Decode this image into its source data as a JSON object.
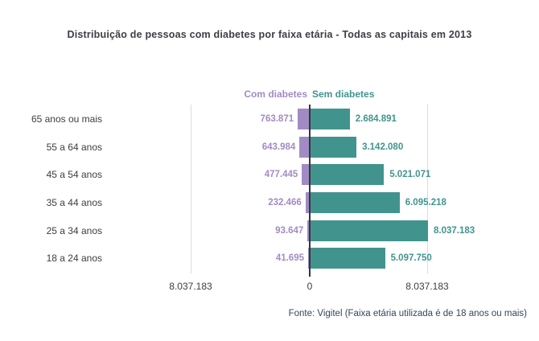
{
  "title": "Distribuição de pessoas com diabetes por faixa etária - Todas as capitais em 2013",
  "legend": {
    "com_diabetes": "Com diabetes",
    "sem_diabetes": "Sem diabetes"
  },
  "axis": {
    "left_tick": "8.037.183",
    "zero_tick": "0",
    "right_tick": "8.037.183"
  },
  "footer": "Fonte: Vigitel (Faixa etária utilizada é de 18 anos ou mais)",
  "colors": {
    "com_diabetes": "#a28bc4",
    "sem_diabetes": "#41948e",
    "axis_line": "#35353a",
    "gridline": "#dcdcdc",
    "text": "#3d3d44",
    "footer_text": "#33475b"
  },
  "chart_data": {
    "type": "bar",
    "variant": "diverging-horizontal",
    "title": "Distribuição de pessoas com diabetes por faixa etária - Todas as capitais em 2013",
    "categories": [
      "65 anos ou mais",
      "55 a 64 anos",
      "45 a 54 anos",
      "35 a 44 anos",
      "25 a 34 anos",
      "18 a 24 anos"
    ],
    "series": [
      {
        "name": "Com diabetes",
        "side": "left",
        "color": "#a28bc4",
        "values": [
          763871,
          643984,
          477445,
          232466,
          93647,
          41695
        ],
        "labels": [
          "763.871",
          "643.984",
          "477.445",
          "232.466",
          "93.647",
          "41.695"
        ]
      },
      {
        "name": "Sem diabetes",
        "side": "right",
        "color": "#41948e",
        "values": [
          2684891,
          3142080,
          5021071,
          6095218,
          8037183,
          5097750
        ],
        "labels": [
          "2.684.891",
          "3.142.080",
          "5.021.071",
          "6.095.218",
          "8.037.183",
          "5.097.750"
        ]
      }
    ],
    "xlim": [
      -8037183,
      8037183
    ],
    "x_ticks": [
      "8.037.183",
      "0",
      "8.037.183"
    ],
    "grid": "vertical-edge-gridlines",
    "legend_position": "top-center",
    "source": "Fonte: Vigitel (Faixa etária utilizada é de 18 anos ou mais)"
  }
}
